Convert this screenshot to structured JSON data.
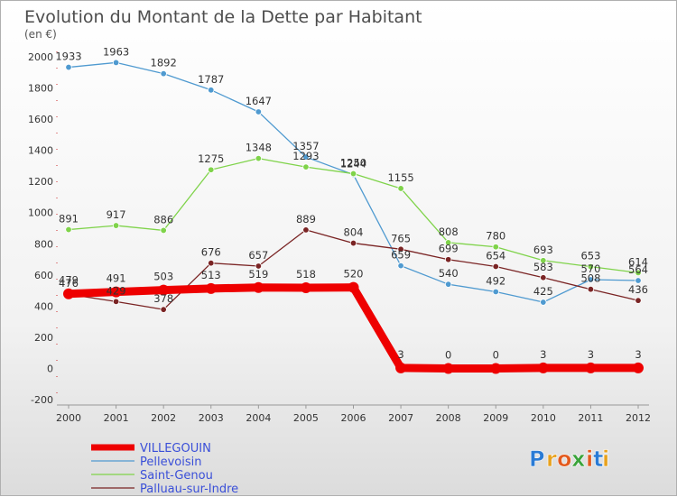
{
  "chart_data": {
    "type": "line",
    "title": "Evolution du Montant de la Dette par Habitant",
    "subtitle": "(en €)",
    "x": [
      "2000",
      "2001",
      "2002",
      "2003",
      "2004",
      "2005",
      "2006",
      "2007",
      "2008",
      "2009",
      "2010",
      "2011",
      "2012"
    ],
    "yticks": [
      "-200",
      "0",
      "200",
      "400",
      "600",
      "800",
      "1000",
      "1200",
      "1400",
      "1600",
      "1800",
      "2000"
    ],
    "ylim": [
      -200,
      2000
    ],
    "grid": false,
    "legend_position": "bottom-left",
    "series": [
      {
        "name": "VILLEGOUIN",
        "color": "#ee0000",
        "values": [
          479,
          491,
          503,
          513,
          519,
          518,
          520,
          3,
          0,
          0,
          3,
          3,
          3
        ]
      },
      {
        "name": "Pellevoisin",
        "color": "#4f9ad0",
        "values": [
          1933,
          1963,
          1892,
          1787,
          1647,
          1357,
          1244,
          659,
          540,
          492,
          425,
          570,
          564
        ]
      },
      {
        "name": "Saint-Genou",
        "color": "#7fd34a",
        "values": [
          891,
          917,
          886,
          1275,
          1348,
          1293,
          1250,
          1155,
          808,
          780,
          693,
          653,
          614
        ]
      },
      {
        "name": "Palluau-sur-Indre",
        "color": "#7a2424",
        "values": [
          476,
          429,
          378,
          676,
          657,
          889,
          804,
          765,
          699,
          654,
          583,
          508,
          436
        ]
      }
    ]
  },
  "logo": {
    "letters": [
      "P",
      "r",
      "o",
      "x",
      "i",
      "t",
      "i"
    ],
    "colors": [
      "#2a7bd5",
      "#e8a21e",
      "#e35a1e",
      "#3aa33a",
      "#e35a1e",
      "#2a7bd5",
      "#e8a21e"
    ]
  }
}
